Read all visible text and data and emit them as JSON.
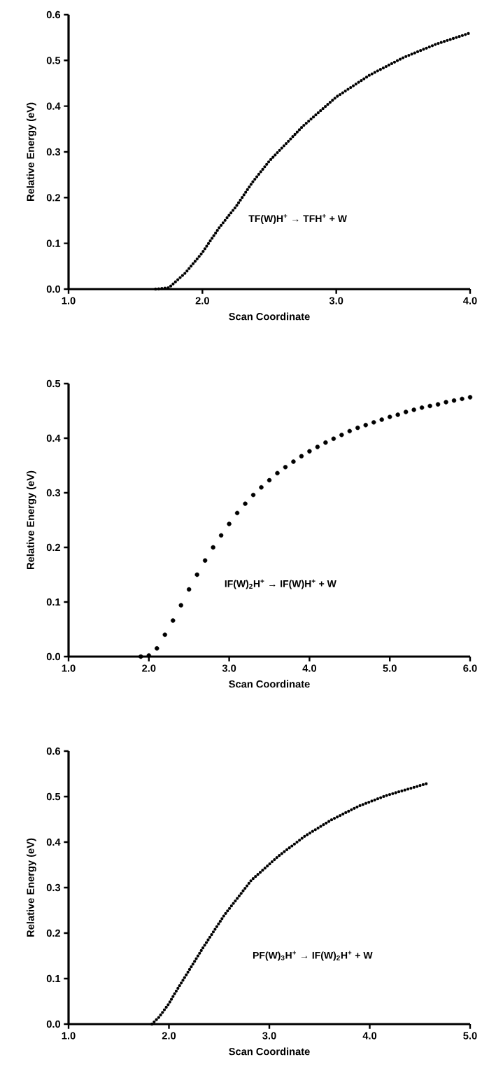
{
  "chart_data": [
    {
      "type": "line",
      "xlabel": "Scan Coordinate",
      "ylabel": "Relative Energy (eV)",
      "color": "#000000",
      "line_style": "dotted",
      "marker": "none",
      "x": [
        1.65,
        1.75,
        1.875,
        2.0,
        2.125,
        2.25,
        2.375,
        2.5,
        2.75,
        3.0,
        3.25,
        3.5,
        3.75,
        4.0
      ],
      "values": [
        0.0,
        0.003,
        0.036,
        0.08,
        0.134,
        0.18,
        0.234,
        0.28,
        0.356,
        0.42,
        0.468,
        0.506,
        0.536,
        0.56
      ],
      "xlim": [
        1.0,
        4.0
      ],
      "ylim": [
        0.0,
        0.6
      ],
      "xticks": [
        {
          "value": 1.0,
          "label": "1.0"
        },
        {
          "value": 2.0,
          "label": "2.0"
        },
        {
          "value": 3.0,
          "label": "3.0"
        },
        {
          "value": 4.0,
          "label": "4.0"
        }
      ],
      "yticks": [
        {
          "value": 0.0,
          "label": "0.0"
        },
        {
          "value": 0.1,
          "label": "0.1"
        },
        {
          "value": 0.2,
          "label": "0.2"
        },
        {
          "value": 0.3,
          "label": "0.3"
        },
        {
          "value": 0.4,
          "label": "0.4"
        },
        {
          "value": 0.5,
          "label": "0.5"
        },
        {
          "value": 0.6,
          "label": "0.6"
        }
      ],
      "annotations": [
        "TF(W)H$^{+}$ → TFH$^{+}$ + W"
      ]
    },
    {
      "type": "scatter",
      "xlabel": "Scan Coordinate",
      "ylabel": "Relative Energy (eV)",
      "color": "#000000",
      "marker": "circle",
      "x": [
        1.9,
        2.0,
        2.1,
        2.2,
        2.3,
        2.4,
        2.5,
        2.6,
        2.7,
        2.8,
        2.9,
        3.0,
        3.1,
        3.2,
        3.3,
        3.4,
        3.5,
        3.6,
        3.7,
        3.8,
        3.9,
        4.0,
        4.1,
        4.2,
        4.3,
        4.4,
        4.5,
        4.6,
        4.7,
        4.8,
        4.9,
        5.0,
        5.1,
        5.2,
        5.3,
        5.4,
        5.5,
        5.6,
        5.7,
        5.8,
        5.9,
        6.0
      ],
      "values": [
        0.0,
        0.002,
        0.015,
        0.04,
        0.066,
        0.094,
        0.123,
        0.15,
        0.176,
        0.2,
        0.222,
        0.243,
        0.263,
        0.28,
        0.296,
        0.31,
        0.323,
        0.336,
        0.347,
        0.357,
        0.367,
        0.376,
        0.384,
        0.392,
        0.399,
        0.406,
        0.413,
        0.419,
        0.424,
        0.429,
        0.434,
        0.439,
        0.443,
        0.448,
        0.452,
        0.456,
        0.459,
        0.462,
        0.466,
        0.469,
        0.472,
        0.475
      ],
      "xlim": [
        1.0,
        6.0
      ],
      "ylim": [
        0.0,
        0.5
      ],
      "xticks": [
        {
          "value": 1.0,
          "label": "1.0"
        },
        {
          "value": 2.0,
          "label": "2.0"
        },
        {
          "value": 3.0,
          "label": "3.0"
        },
        {
          "value": 4.0,
          "label": "4.0"
        },
        {
          "value": 5.0,
          "label": "5.0"
        },
        {
          "value": 6.0,
          "label": "6.0"
        }
      ],
      "yticks": [
        {
          "value": 0.0,
          "label": "0.0"
        },
        {
          "value": 0.1,
          "label": "0.1"
        },
        {
          "value": 0.2,
          "label": "0.2"
        },
        {
          "value": 0.3,
          "label": "0.3"
        },
        {
          "value": 0.4,
          "label": "0.4"
        },
        {
          "value": 0.5,
          "label": "0.5"
        }
      ],
      "annotations": [
        "IF(W)$_{2}$H$^{+}$ → IF(W)H$^{+}$ + W"
      ]
    },
    {
      "type": "line",
      "xlabel": "Scan Coordinate",
      "ylabel": "Relative Energy (eV)",
      "color": "#000000",
      "line_style": "dotted",
      "marker": "none",
      "x": [
        1.83,
        1.9,
        2.0,
        2.06,
        2.34,
        2.55,
        2.82,
        3.09,
        3.36,
        3.62,
        3.89,
        4.16,
        4.59
      ],
      "values": [
        0.0,
        0.015,
        0.045,
        0.068,
        0.168,
        0.239,
        0.316,
        0.369,
        0.414,
        0.449,
        0.479,
        0.502,
        0.53
      ],
      "xlim": [
        1.0,
        5.0
      ],
      "ylim": [
        0.0,
        0.6
      ],
      "xticks": [
        {
          "value": 1.0,
          "label": "1.0"
        },
        {
          "value": 2.0,
          "label": "2.0"
        },
        {
          "value": 3.0,
          "label": "3.0"
        },
        {
          "value": 4.0,
          "label": "4.0"
        },
        {
          "value": 5.0,
          "label": "5.0"
        }
      ],
      "yticks": [
        {
          "value": 0.0,
          "label": "0.0"
        },
        {
          "value": 0.1,
          "label": "0.1"
        },
        {
          "value": 0.2,
          "label": "0.2"
        },
        {
          "value": 0.3,
          "label": "0.3"
        },
        {
          "value": 0.4,
          "label": "0.4"
        },
        {
          "value": 0.5,
          "label": "0.5"
        },
        {
          "value": 0.6,
          "label": "0.6"
        }
      ],
      "annotations": [
        "PF(W)$_{3}$H$^{+}$ → IF(W)$_{2}$H$^{+}$ + W"
      ]
    }
  ]
}
